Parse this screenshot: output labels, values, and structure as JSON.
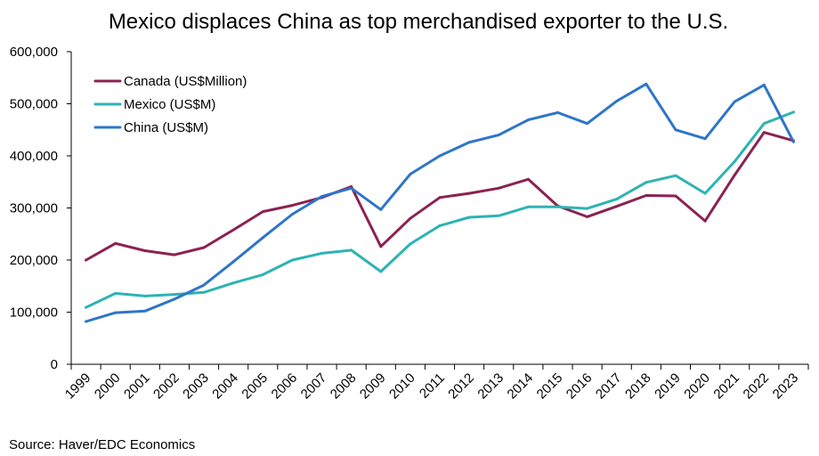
{
  "chart_data": {
    "type": "line",
    "title": "Mexico displaces China as top merchandised exporter to the U.S.",
    "xlabel": "",
    "ylabel": "",
    "x": [
      "1999",
      "2000",
      "2001",
      "2002",
      "2003",
      "2004",
      "2005",
      "2006",
      "2007",
      "2008",
      "2009",
      "2010",
      "2011",
      "2012",
      "2013",
      "2014",
      "2015",
      "2016",
      "2017",
      "2018",
      "2019",
      "2020",
      "2021",
      "2022",
      "2023"
    ],
    "ylim": [
      0,
      600000
    ],
    "yticks": [
      0,
      100000,
      200000,
      300000,
      400000,
      500000,
      600000
    ],
    "ytick_labels": [
      "0",
      "100,000",
      "200,000",
      "300,000",
      "400,000",
      "500,000",
      "600,000"
    ],
    "grid": false,
    "legend_position": "top-left",
    "series": [
      {
        "name": "Canada (US$Million)",
        "color": "#8B2252",
        "values": [
          200000,
          232000,
          218000,
          210000,
          224000,
          258000,
          293000,
          305000,
          320000,
          341000,
          226000,
          280000,
          320000,
          328000,
          338000,
          355000,
          304000,
          283000,
          303000,
          324000,
          323000,
          275000,
          363000,
          445000,
          429000
        ]
      },
      {
        "name": "Mexico (US$M)",
        "color": "#2EB3B3",
        "values": [
          109000,
          136000,
          131000,
          134000,
          138000,
          156000,
          172000,
          200000,
          213000,
          219000,
          178000,
          231000,
          266000,
          282000,
          285000,
          302000,
          302000,
          299000,
          317000,
          349000,
          362000,
          328000,
          389000,
          462000,
          484000
        ]
      },
      {
        "name": "China (US$M)",
        "color": "#2E75C8",
        "values": [
          82000,
          99000,
          102000,
          125000,
          152000,
          197000,
          243000,
          288000,
          322000,
          338000,
          297000,
          365000,
          400000,
          426000,
          440000,
          469000,
          483000,
          462000,
          505000,
          538000,
          450000,
          433000,
          504000,
          536000,
          427000
        ]
      }
    ],
    "source": "Source: Haver/EDC Economics"
  }
}
